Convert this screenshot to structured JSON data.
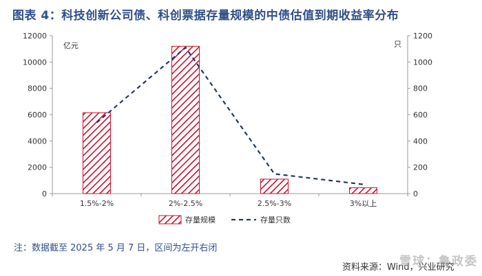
{
  "header": {
    "title": "图表 4：科技创新公司债、科创票据存量规模的中债估值到期收益率分布"
  },
  "footer": {
    "note": "注：数据截至 2025 年 5 月 7 日，区间为左开右闭",
    "source": "资料来源：Wind，兴业研究",
    "watermark": "雪球：鲁政委"
  },
  "colors": {
    "bar_stroke": "#c8102e",
    "bar_hatch": "#c8102e",
    "line": "#1f3864",
    "axis": "#999999",
    "text": "#333333",
    "title": "#2f4f8a"
  },
  "chart_data": {
    "type": "bar",
    "title": "图表 4：科技创新公司债、科创票据存量规模的中债估值到期收益率分布",
    "categories": [
      "1.5%-2%",
      "2%-2.5%",
      "2.5%-3%",
      "3%以上"
    ],
    "y_left": {
      "unit_label": "亿元",
      "ticks": [
        "0",
        "2000",
        "4000",
        "6000",
        "8000",
        "10000",
        "12000"
      ],
      "lim": [
        0,
        12000
      ]
    },
    "y_right": {
      "unit_label": "只",
      "ticks": [
        "0",
        "200",
        "400",
        "600",
        "800",
        "1000",
        "1200"
      ],
      "lim": [
        0,
        1200
      ]
    },
    "series": [
      {
        "name": "存量规模",
        "kind": "bar",
        "axis": "left",
        "style": "hatched",
        "values": [
          6150,
          11200,
          1100,
          450
        ]
      },
      {
        "name": "存量只数",
        "kind": "line",
        "axis": "right",
        "style": "dashed",
        "values": [
          540,
          1110,
          150,
          70
        ]
      }
    ],
    "legend_position": "bottom-center",
    "grid": false
  }
}
